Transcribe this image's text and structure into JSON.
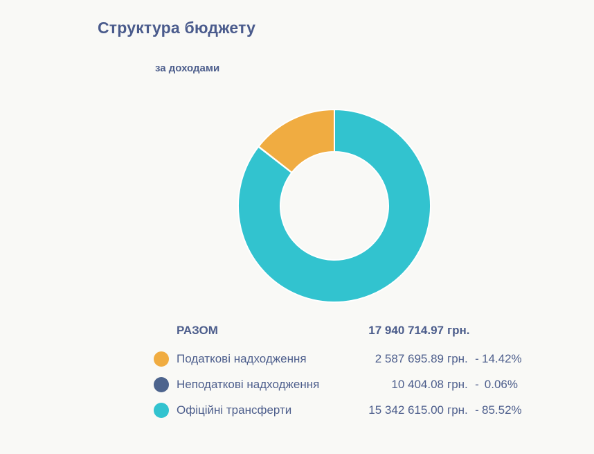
{
  "chart_data": {
    "type": "pie",
    "variant": "donut",
    "title": "Структура бюджету",
    "subtitle": "за доходами",
    "unit": "грн.",
    "separator": "-",
    "start_angle": "top",
    "direction": "counterclockwise",
    "cutout_ratio": 0.56,
    "border_color": "#FFFFFF",
    "background": "#F9F9F6",
    "text_color": "#4D5E8C",
    "total": {
      "label": "РАЗОМ",
      "amount_text": "17 940 714.97",
      "value": 17940714.97
    },
    "slices": [
      {
        "label": "Податкові надходження",
        "value": 2587695.89,
        "amount_text": "2 587 695.89",
        "percent": 14.42,
        "percent_text": "14.42%",
        "color": "#F0AC41"
      },
      {
        "label": "Неподаткові надходження",
        "value": 10404.08,
        "amount_text": "10 404.08",
        "percent": 0.06,
        "percent_text": "0.06%",
        "color": "#4D648D"
      },
      {
        "label": "Офіційні трансферти",
        "value": 15342615.0,
        "amount_text": "15 342 615.00",
        "percent": 85.52,
        "percent_text": "85.52%",
        "color": "#32C3CF"
      }
    ]
  }
}
